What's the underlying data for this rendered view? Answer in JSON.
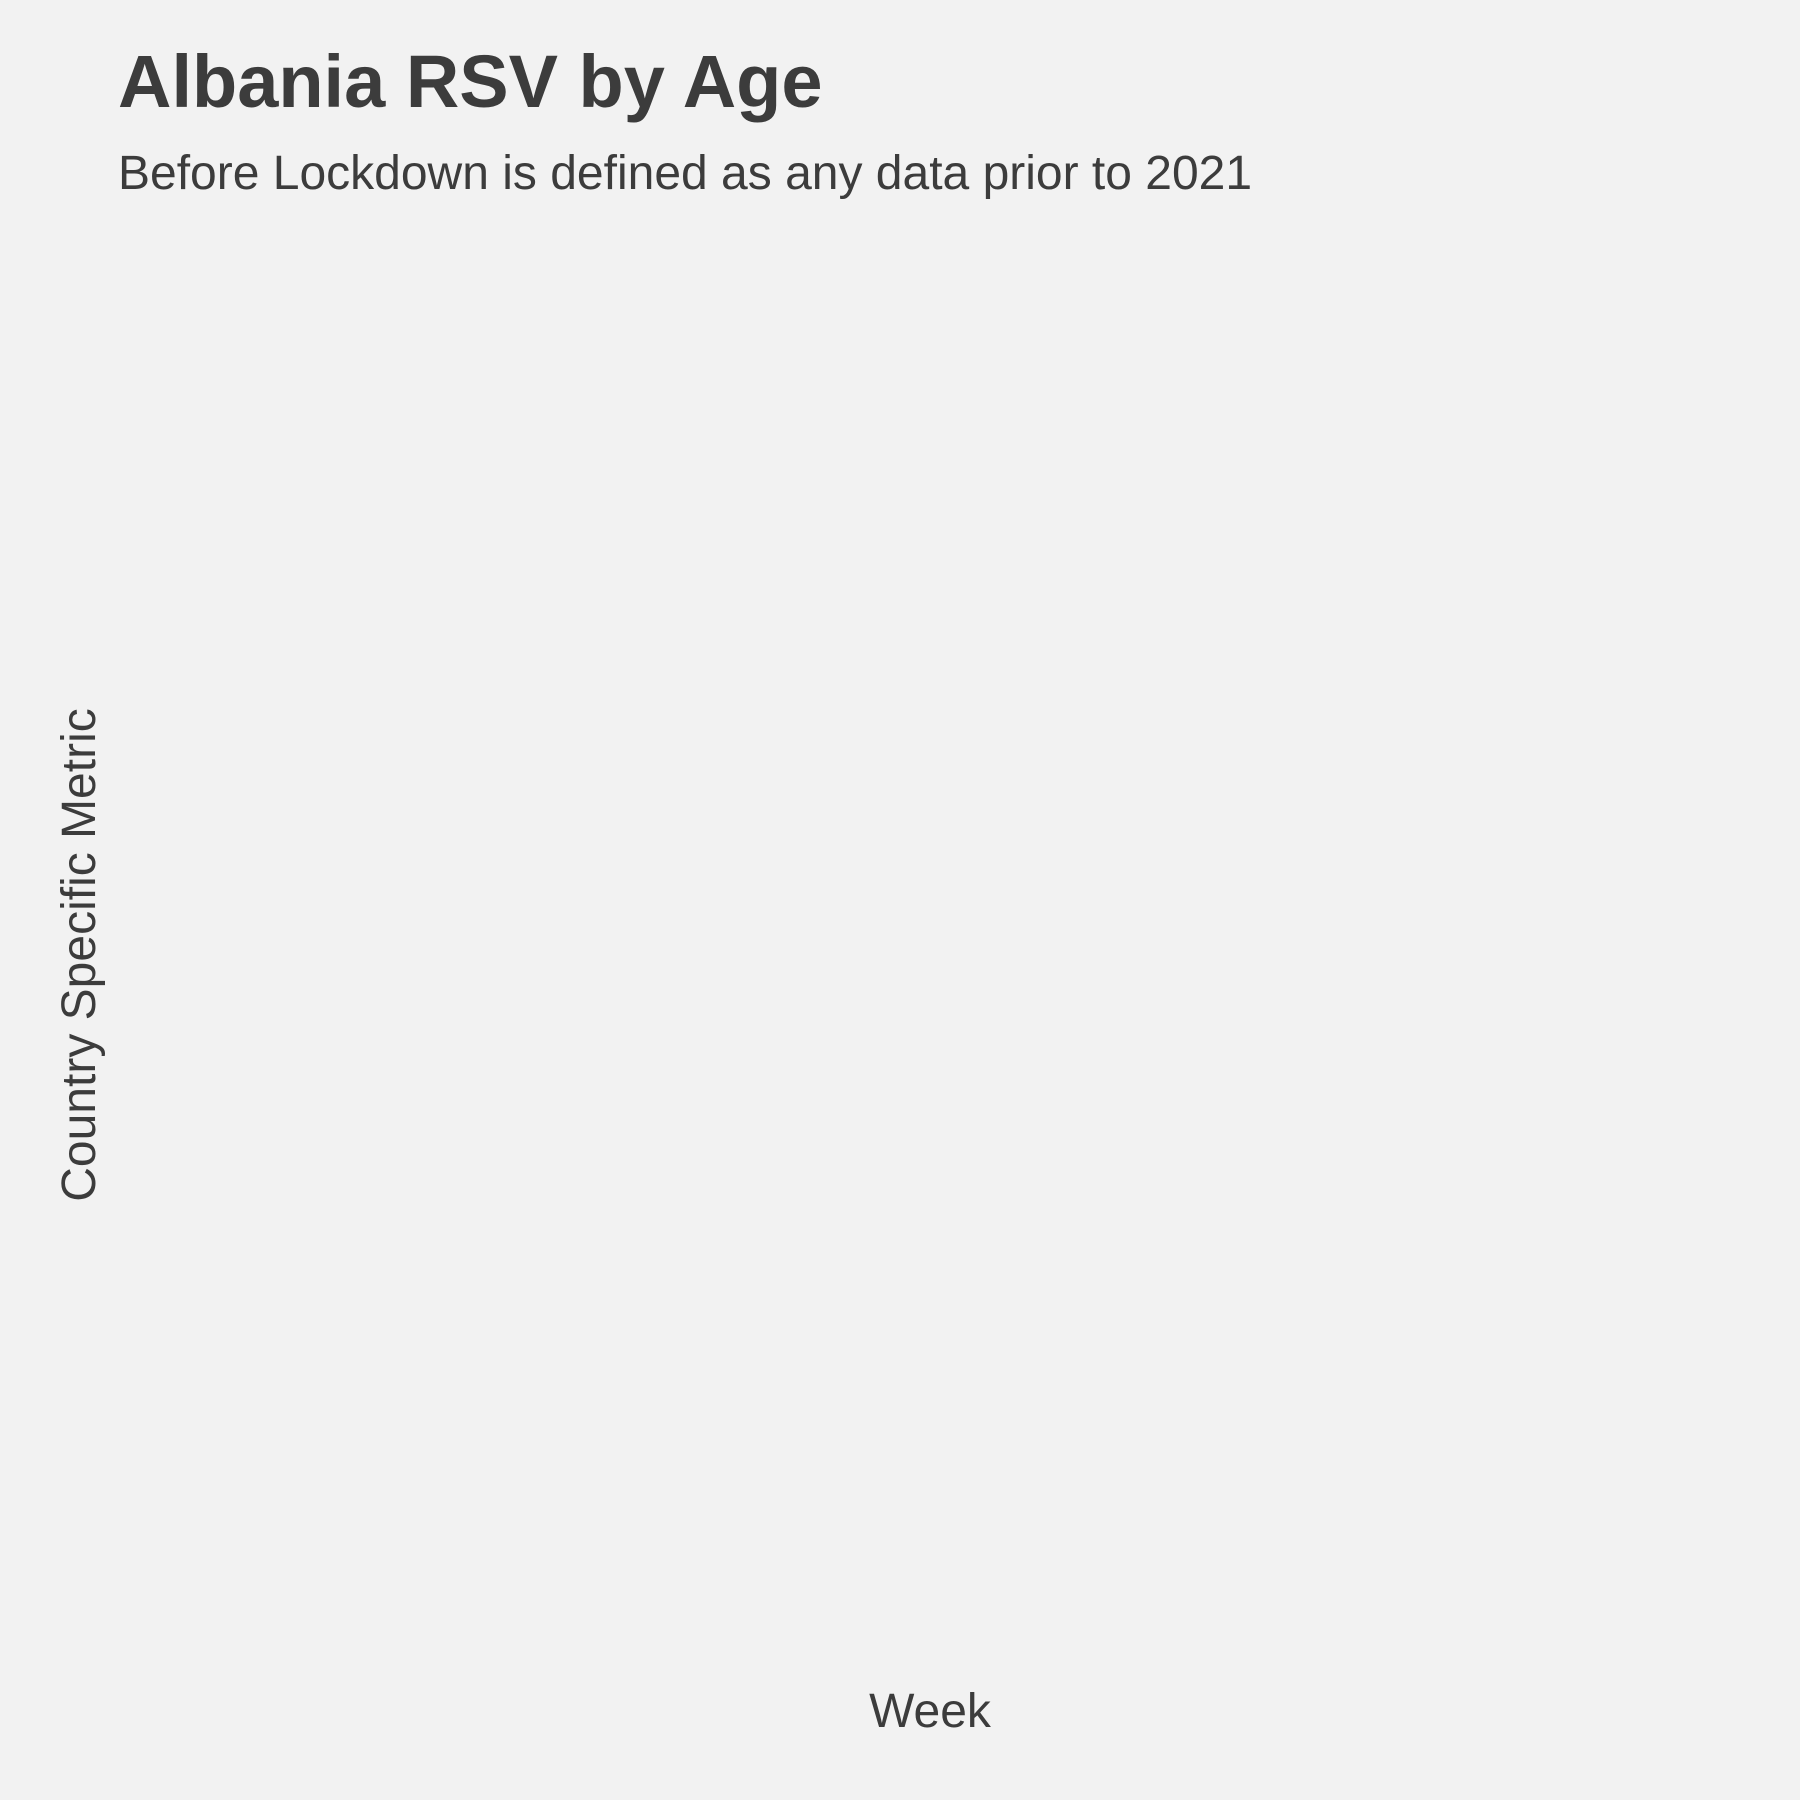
{
  "chart_data": {
    "type": "line",
    "title": "Albania RSV by Age",
    "subtitle": "Before Lockdown is defined as any data prior to 2021",
    "xlabel": "Week",
    "ylabel": "Country Specific Metric",
    "series": [],
    "grid": false,
    "legend": "none"
  },
  "colors": {
    "background": "#f2f2f2",
    "text": "#3c3c3c"
  }
}
